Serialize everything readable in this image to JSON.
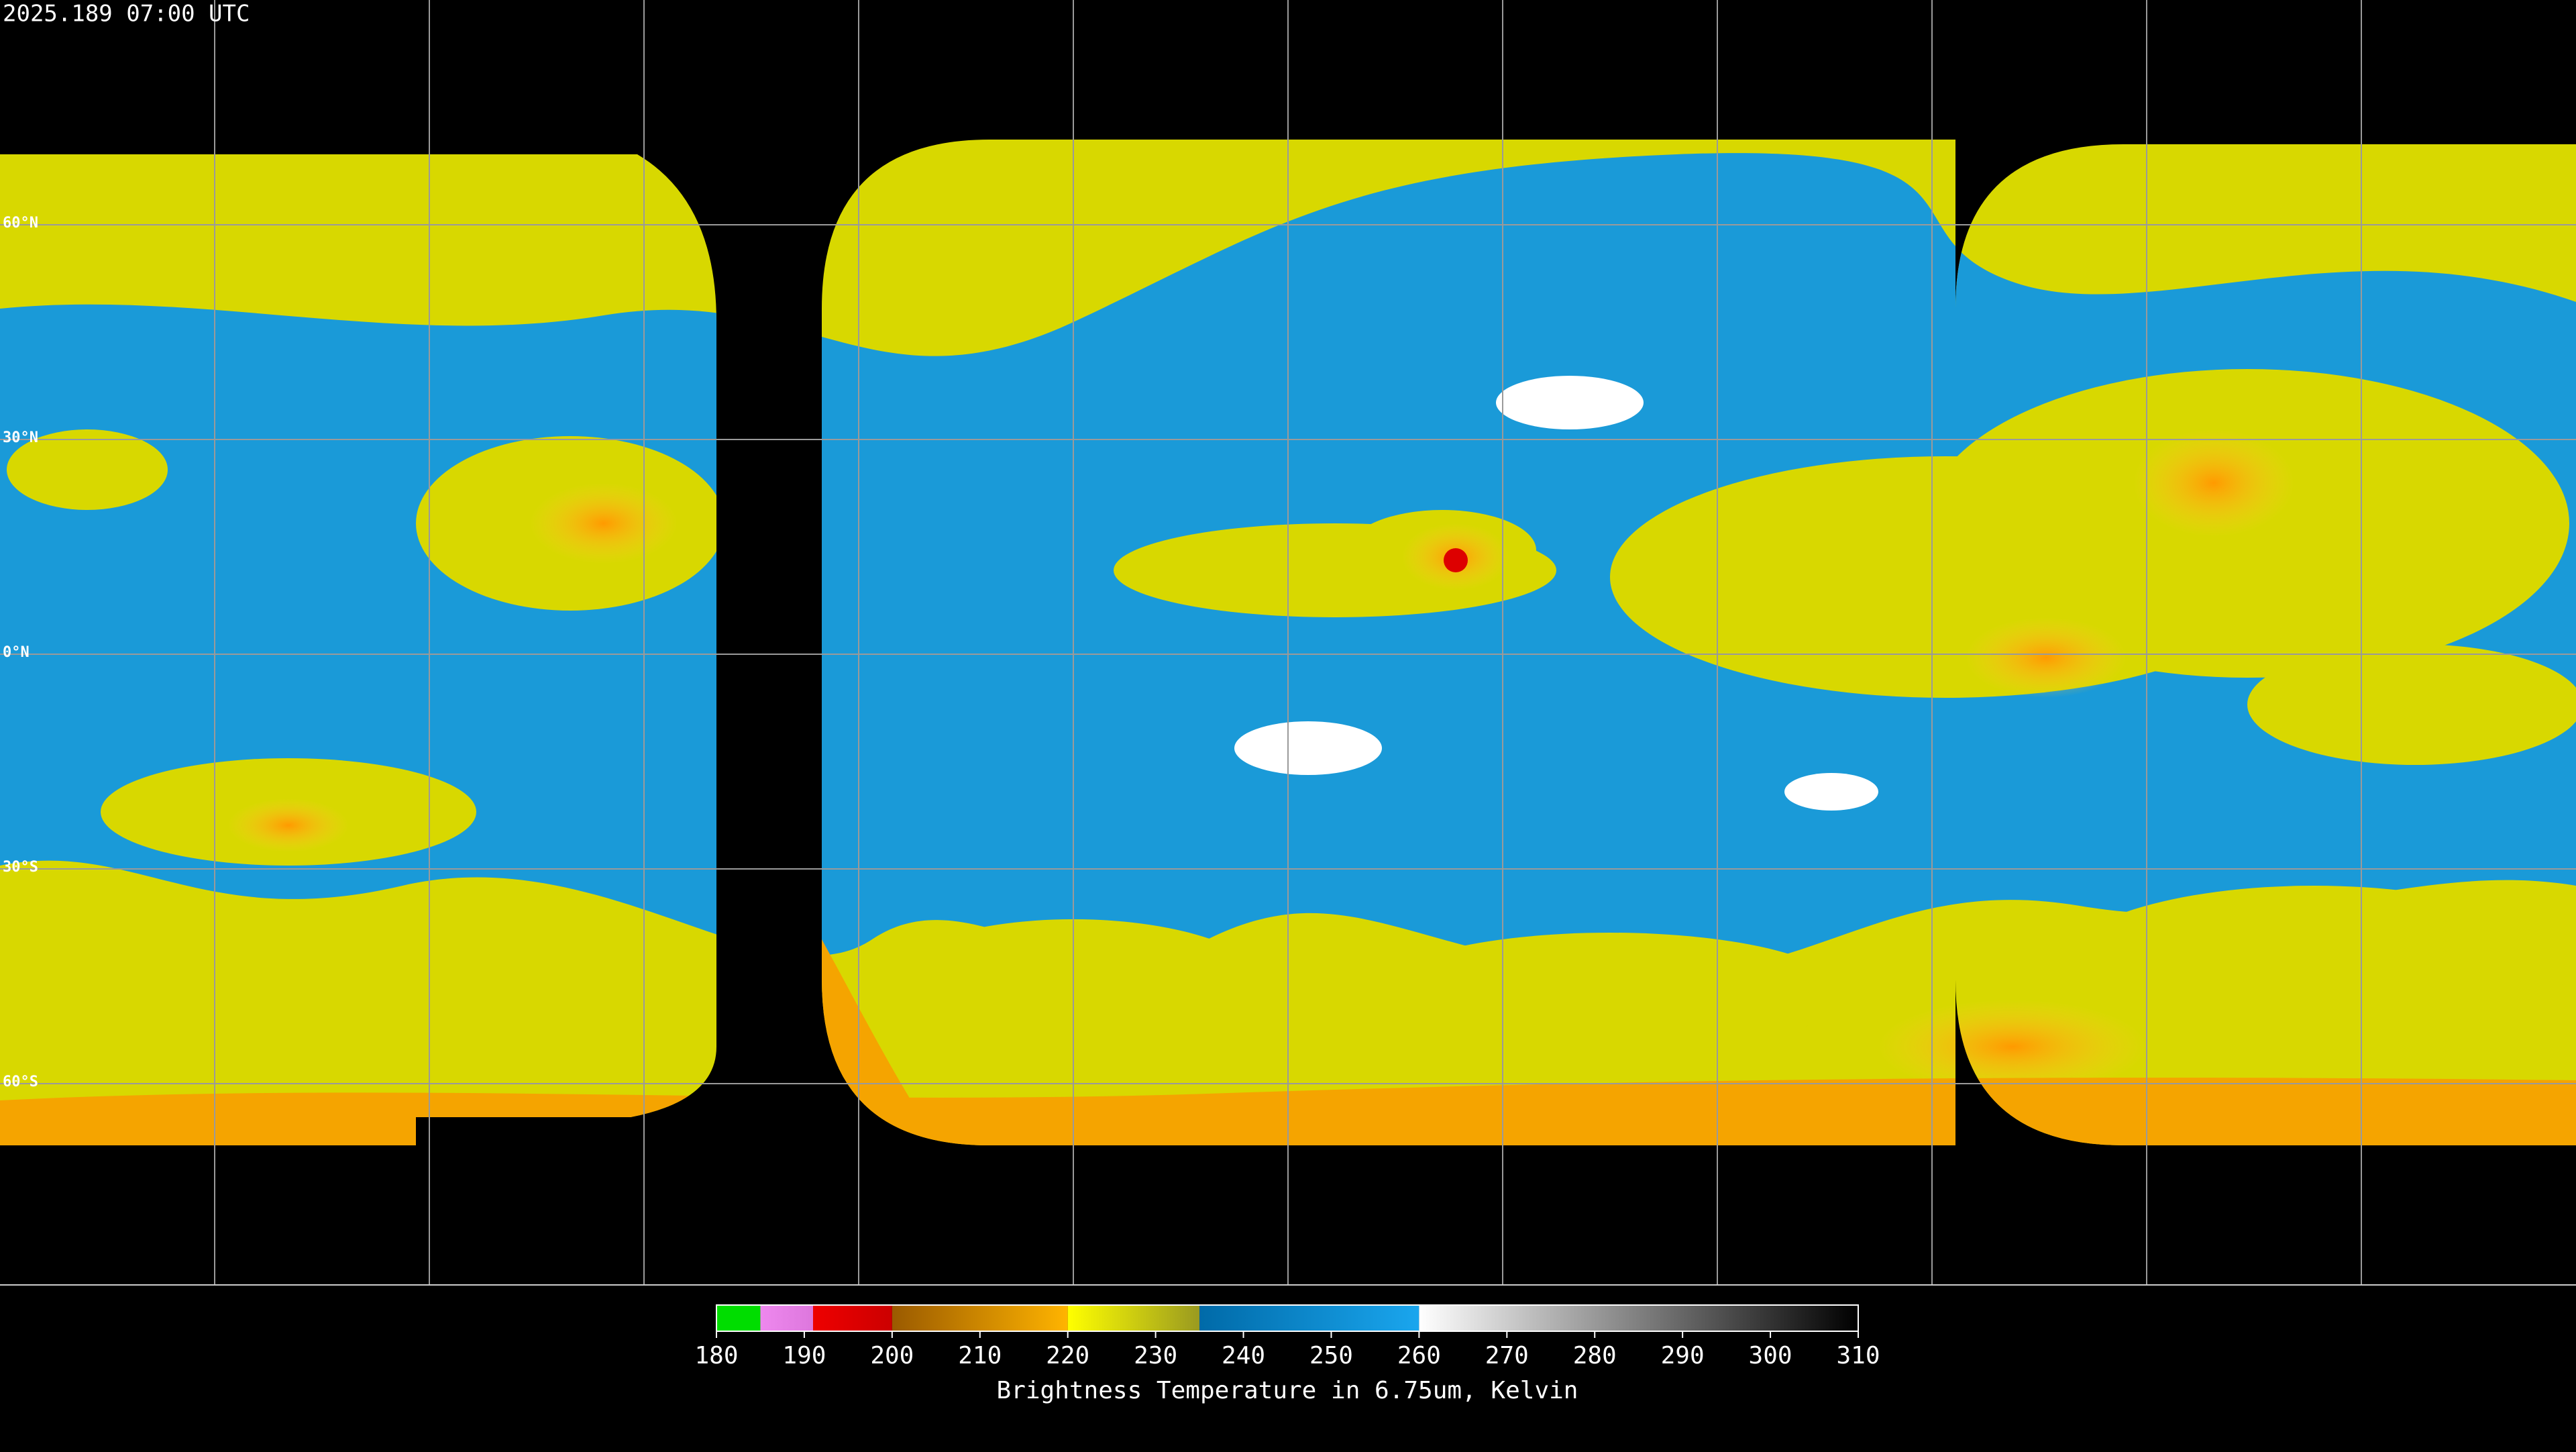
{
  "header": {
    "timestamp": "2025.189 07:00 UTC"
  },
  "map": {
    "lat_ticks": [
      {
        "value": 60,
        "label": "60°N"
      },
      {
        "value": 30,
        "label": "30°N"
      },
      {
        "value": 0,
        "label": "0°N"
      },
      {
        "value": -30,
        "label": "30°S"
      },
      {
        "value": -60,
        "label": "60°S"
      }
    ]
  },
  "colorbar": {
    "range": [
      180,
      310
    ],
    "ticks": [
      180,
      190,
      200,
      210,
      220,
      230,
      240,
      250,
      260,
      270,
      280,
      290,
      300,
      310
    ],
    "title": "Brightness Temperature in 6.75um, Kelvin",
    "segments": [
      {
        "from": 180,
        "to": 185,
        "colors": [
          "#00dd00",
          "#00dd00"
        ]
      },
      {
        "from": 185,
        "to": 191,
        "colors": [
          "#ee88ee",
          "#dd77dd"
        ]
      },
      {
        "from": 191,
        "to": 200,
        "colors": [
          "#ee0000",
          "#cc0000"
        ]
      },
      {
        "from": 200,
        "to": 220,
        "colors": [
          "#9a5a00",
          "#ffb400"
        ]
      },
      {
        "from": 220,
        "to": 235,
        "colors": [
          "#ffff00",
          "#9a9a20"
        ]
      },
      {
        "from": 235,
        "to": 260,
        "colors": [
          "#006aa8",
          "#1aa6ee"
        ]
      },
      {
        "from": 260,
        "to": 310,
        "colors": [
          "#ffffff",
          "#000000"
        ]
      }
    ]
  }
}
